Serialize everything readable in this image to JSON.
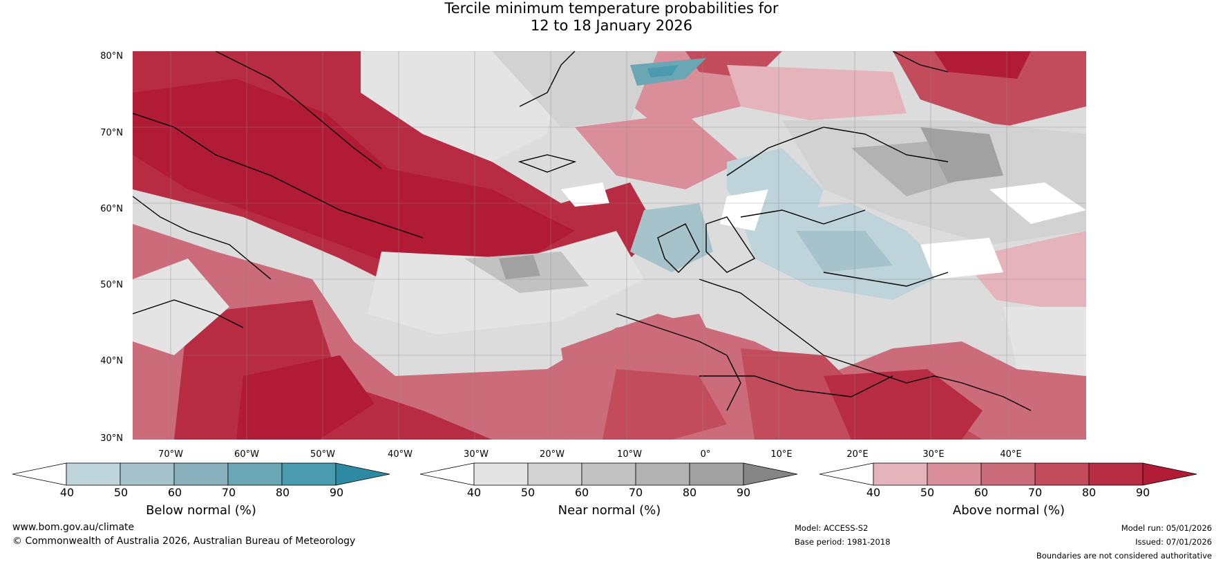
{
  "title": {
    "line1": "Tercile minimum temperature probabilities for",
    "line2": "12 to 18 January 2026"
  },
  "axes": {
    "lat_labels": [
      "80°N",
      "70°N",
      "60°N",
      "50°N",
      "40°N",
      "30°N"
    ],
    "lon_labels": [
      "70°W",
      "60°W",
      "50°W",
      "40°W",
      "30°W",
      "20°W",
      "10°W",
      "0°",
      "10°E",
      "20°E",
      "30°E",
      "40°E"
    ]
  },
  "colorbars": {
    "ticks": [
      "40",
      "50",
      "60",
      "70",
      "80",
      "90"
    ],
    "below": {
      "label": "Below normal (%)",
      "colors": [
        "#ffffff",
        "#bed3da",
        "#a6c3cb",
        "#89b0bd",
        "#6aa6b4",
        "#4a9bb0",
        "#2c8aa3"
      ]
    },
    "near": {
      "label": "Near normal (%)",
      "colors": [
        "#ffffff",
        "#e4e4e4",
        "#d2d2d2",
        "#c2c2c2",
        "#b2b2b2",
        "#a1a1a1",
        "#858585"
      ]
    },
    "above": {
      "label": "Above normal (%)",
      "colors": [
        "#ffffff",
        "#e5b3bc",
        "#d98e99",
        "#cc6b79",
        "#c24c5c",
        "#b82c43",
        "#b11b35"
      ]
    }
  },
  "footer": {
    "website": "www.bom.gov.au/climate",
    "copyright": "© Commonwealth of Australia 2026, Australian Bureau of Meteorology",
    "model": "Model: ACCESS-S2",
    "base_period": "Base period: 1981-2018",
    "model_run": "Model run: 05/01/2026",
    "issued": "Issued: 07/01/2026",
    "disclaimer": "Boundaries are not considered authoritative"
  }
}
